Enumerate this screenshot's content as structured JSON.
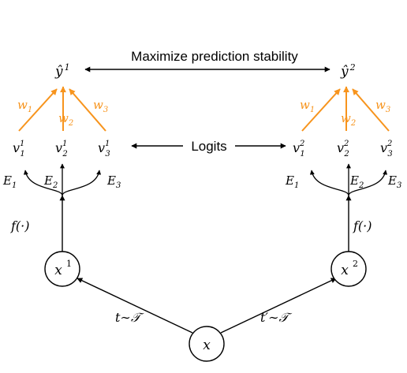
{
  "input_node": {
    "label": "x"
  },
  "left_branch": {
    "view_label": "x",
    "view_sup": "1",
    "transform_label": "t∼𝒯",
    "encoder_label": "f(·)",
    "experts": [
      "E",
      "E",
      "E"
    ],
    "expert_subs": [
      "1",
      "2",
      "3"
    ],
    "logits": [
      "v",
      "v",
      "v"
    ],
    "logit_subs": [
      "1",
      "2",
      "3"
    ],
    "logit_sup": "1",
    "weights": [
      "w",
      "w",
      "w"
    ],
    "weight_subs": [
      "1",
      "2",
      "3"
    ],
    "prediction": "ŷ",
    "prediction_sup": "1"
  },
  "right_branch": {
    "view_label": "x",
    "view_sup": "2",
    "transform_label": "t′∼𝒯",
    "encoder_label": "f(·)",
    "experts": [
      "E",
      "E",
      "E"
    ],
    "expert_subs": [
      "1",
      "2",
      "3"
    ],
    "logits": [
      "v",
      "v",
      "v"
    ],
    "logit_subs": [
      "1",
      "2",
      "3"
    ],
    "logit_sup": "2",
    "weights": [
      "w",
      "w",
      "w"
    ],
    "weight_subs": [
      "1",
      "2",
      "3"
    ],
    "prediction": "ŷ",
    "prediction_sup": "2"
  },
  "center_labels": {
    "stability": "Maximize prediction stability",
    "logits": "Logits"
  },
  "colors": {
    "weight_arrow": "#f7941d",
    "ink": "#000000"
  }
}
